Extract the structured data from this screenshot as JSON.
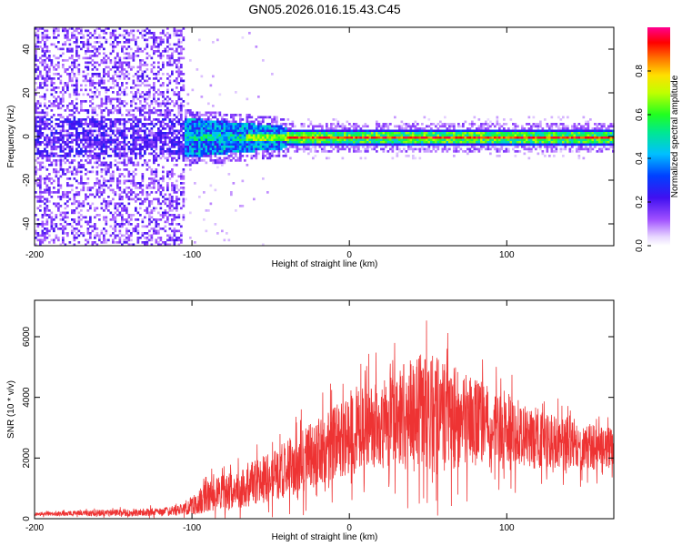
{
  "figure": {
    "title": "GN05.2026.016.15.43.C45"
  },
  "chart_data": [
    {
      "type": "heatmap",
      "xlabel": "Height of straight line (km)",
      "ylabel": "Frequency (Hz)",
      "xlim": [
        -200,
        168
      ],
      "ylim": [
        -50,
        50
      ],
      "xticks": [
        -200,
        -100,
        0,
        100
      ],
      "yticks": [
        -40,
        -20,
        0,
        20,
        40
      ],
      "colorbar": {
        "label": "Normalized spectral amplitude",
        "range": [
          0,
          1
        ],
        "ticks": [
          "0.0",
          "0.2",
          "0.4",
          "0.6",
          "0.8"
        ],
        "tick_values": [
          0.0,
          0.2,
          0.4,
          0.6,
          0.8
        ],
        "colormap": "rainbow (white-violet-blue-cyan-green-yellow-red-magenta)"
      },
      "features": {
        "noise_region_x": [
          -200,
          -105
        ],
        "noise_band_hz": [
          -50,
          50
        ],
        "transition_region_x": [
          -105,
          -40
        ],
        "signal_line_hz": 0,
        "signal_start_x": -40,
        "signal_end_x": 168
      },
      "grid": false
    },
    {
      "type": "line",
      "xlabel": "Height of straight line (km)",
      "ylabel": "SNR (10 * v/v)",
      "xlim": [
        -200,
        168
      ],
      "ylim": [
        0,
        7200
      ],
      "xticks": [
        -200,
        -100,
        0,
        100
      ],
      "yticks": [
        0,
        2000,
        4000,
        6000
      ],
      "series": [
        {
          "color": "#ee3333",
          "envelope": {
            "x": [
              -200,
              -150,
              -120,
              -105,
              -90,
              -70,
              -50,
              -30,
              -10,
              10,
              30,
              45,
              55,
              70,
              100,
              130,
              168
            ],
            "mean": [
              150,
              200,
              220,
              300,
              700,
              1000,
              1400,
              1900,
              2500,
              3000,
              3300,
              3500,
              3400,
              3300,
              2900,
              2500,
              2300
            ],
            "spread": [
              80,
              150,
              180,
              250,
              700,
              900,
              1100,
              1400,
              1600,
              1800,
              2200,
              2700,
              2600,
              2200,
              1600,
              1200,
              900
            ]
          }
        }
      ],
      "grid": false
    }
  ]
}
